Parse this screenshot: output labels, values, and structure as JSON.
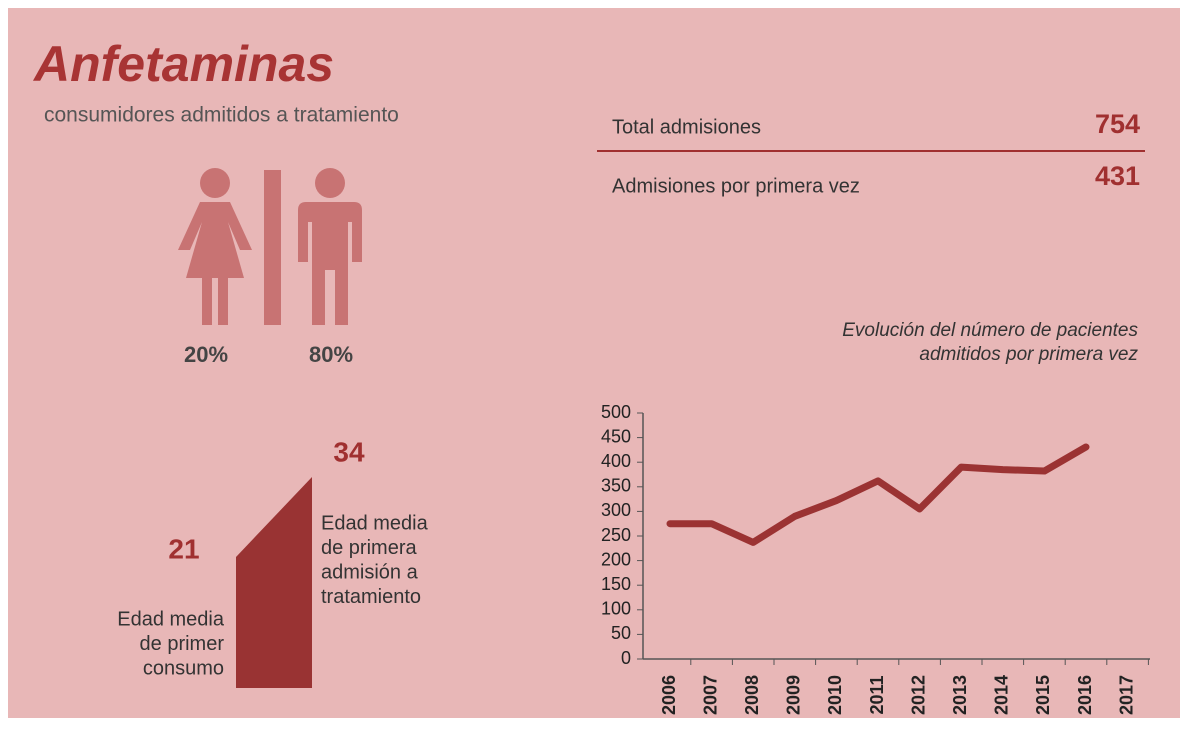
{
  "header": {
    "title": "Anfetaminas",
    "subtitle": "consumidores admitidos a tratamiento"
  },
  "stats": [
    {
      "label": "Total admisiones",
      "value": "754"
    },
    {
      "label": "Admisiones por primera vez",
      "value": "431"
    }
  ],
  "gender": {
    "female": "20%",
    "male": "80%"
  },
  "age": {
    "first_use": {
      "value": "21",
      "label": [
        "Edad media",
        "de primer",
        "consumo"
      ]
    },
    "first_admission": {
      "value": "34",
      "label": [
        "Edad media",
        "de primera",
        "admisión a",
        "tratamiento"
      ]
    }
  },
  "chart_data": {
    "type": "line",
    "title": [
      "Evolución del número de pacientes",
      "admitidos por primera vez"
    ],
    "categories": [
      "2006",
      "2007",
      "2008",
      "2009",
      "2010",
      "2011",
      "2012",
      "2013",
      "2014",
      "2015",
      "2016",
      "2017"
    ],
    "values": [
      275,
      275,
      237,
      290,
      322,
      362,
      305,
      390,
      385,
      382,
      431,
      null
    ],
    "color": "#9b3333",
    "ylim": [
      0,
      500
    ],
    "yticks": [
      0,
      50,
      100,
      150,
      200,
      250,
      300,
      350,
      400,
      450,
      500
    ]
  }
}
